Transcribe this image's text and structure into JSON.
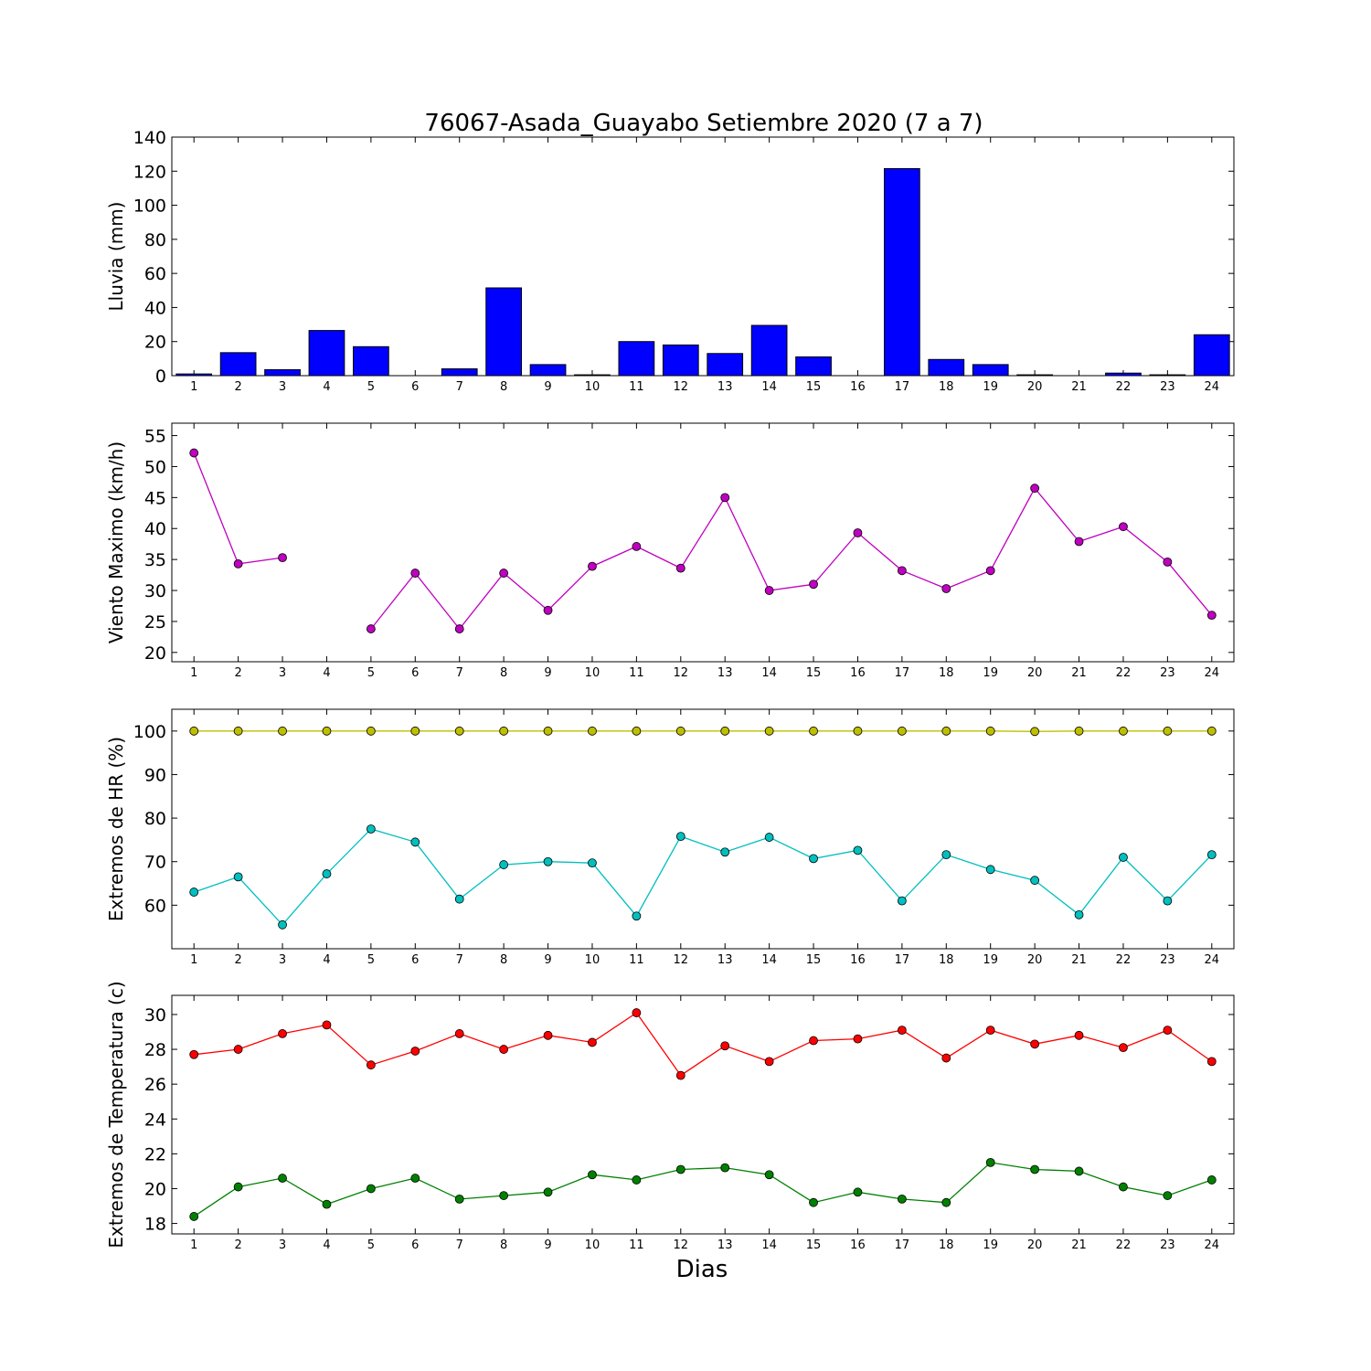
{
  "title": "76067-Asada_Guayabo Setiembre 2020  (7 a 7)",
  "xlabel": "Dias",
  "colors": {
    "rain": "#0000ff",
    "wind": "#bf00bf",
    "hr_max": "#bfbf00",
    "hr_min": "#00bfbf",
    "t_max": "#ff0000",
    "t_min": "#008000"
  },
  "chart_data": [
    {
      "type": "bar",
      "ylabel": "Lluvia (mm)",
      "ylim": [
        0,
        140
      ],
      "yticks": [
        0,
        20,
        40,
        60,
        80,
        100,
        120,
        140
      ],
      "categories": [
        "1",
        "2",
        "3",
        "4",
        "5",
        "6",
        "7",
        "8",
        "9",
        "10",
        "11",
        "12",
        "13",
        "14",
        "15",
        "16",
        "17",
        "18",
        "19",
        "20",
        "21",
        "22",
        "23",
        "24"
      ],
      "series": [
        {
          "values": [
            1.0,
            13.5,
            3.5,
            26.5,
            17.0,
            0.0,
            4.0,
            51.5,
            6.5,
            0.5,
            20.0,
            18.0,
            13.0,
            29.5,
            11.0,
            0.0,
            121.5,
            9.5,
            6.5,
            0.5,
            0.0,
            1.5,
            0.5,
            24.0
          ]
        }
      ]
    },
    {
      "type": "line",
      "ylabel": "Viento Maximo (km/h)",
      "ylim": [
        18.5,
        57
      ],
      "yticks": [
        20,
        25,
        30,
        35,
        40,
        45,
        50,
        55
      ],
      "categories": [
        "1",
        "2",
        "3",
        "4",
        "5",
        "6",
        "7",
        "8",
        "9",
        "10",
        "11",
        "12",
        "13",
        "14",
        "15",
        "16",
        "17",
        "18",
        "19",
        "20",
        "21",
        "22",
        "23",
        "24"
      ],
      "series": [
        {
          "values": [
            52.2,
            34.3,
            35.3,
            null,
            23.8,
            32.8,
            23.8,
            32.8,
            26.8,
            33.9,
            37.1,
            33.6,
            45.0,
            30.0,
            31.0,
            39.3,
            33.2,
            30.3,
            33.2,
            46.5,
            37.9,
            40.3,
            34.6,
            26.0
          ]
        }
      ]
    },
    {
      "type": "line",
      "ylabel": "Extremos de HR (%)",
      "ylim": [
        50,
        105
      ],
      "yticks": [
        60,
        70,
        80,
        90,
        100
      ],
      "categories": [
        "1",
        "2",
        "3",
        "4",
        "5",
        "6",
        "7",
        "8",
        "9",
        "10",
        "11",
        "12",
        "13",
        "14",
        "15",
        "16",
        "17",
        "18",
        "19",
        "20",
        "21",
        "22",
        "23",
        "24"
      ],
      "series": [
        {
          "values": [
            100,
            100,
            100,
            100,
            100,
            100,
            100,
            100,
            100,
            100,
            100,
            100,
            100,
            100,
            100,
            100,
            100,
            100,
            100,
            99.9,
            100,
            100,
            100,
            100
          ]
        },
        {
          "values": [
            63.0,
            66.5,
            55.5,
            67.2,
            77.5,
            74.5,
            61.4,
            69.3,
            70.0,
            69.7,
            57.5,
            75.8,
            72.2,
            75.6,
            70.7,
            72.6,
            61.0,
            71.6,
            68.2,
            65.7,
            57.8,
            71.0,
            61.0,
            71.6
          ]
        }
      ]
    },
    {
      "type": "line",
      "ylabel": "Extremos de Temperatura (c)",
      "ylim": [
        17.4,
        31.1
      ],
      "yticks": [
        18,
        20,
        22,
        24,
        26,
        28,
        30
      ],
      "categories": [
        "1",
        "2",
        "3",
        "4",
        "5",
        "6",
        "7",
        "8",
        "9",
        "10",
        "11",
        "12",
        "13",
        "14",
        "15",
        "16",
        "17",
        "18",
        "19",
        "20",
        "21",
        "22",
        "23",
        "24"
      ],
      "series": [
        {
          "values": [
            27.7,
            28.0,
            28.9,
            29.4,
            27.1,
            27.9,
            28.9,
            28.0,
            28.8,
            28.4,
            30.1,
            26.5,
            28.2,
            27.3,
            28.5,
            28.6,
            29.1,
            27.5,
            29.1,
            28.3,
            28.8,
            28.1,
            29.1,
            27.3
          ]
        },
        {
          "values": [
            18.4,
            20.1,
            20.6,
            19.1,
            20.0,
            20.6,
            19.4,
            19.6,
            19.8,
            20.8,
            20.5,
            21.1,
            21.2,
            20.8,
            19.2,
            19.8,
            19.4,
            19.2,
            21.5,
            21.1,
            21.0,
            20.1,
            19.6,
            20.5
          ]
        }
      ]
    }
  ]
}
